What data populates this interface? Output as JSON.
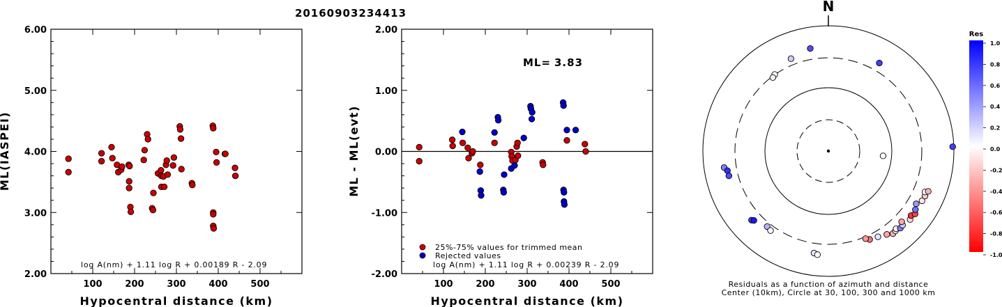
{
  "title": "20160903234413",
  "colors": {
    "accepted": "#cc0000",
    "rejected": "#0000cc",
    "axis": "#000000"
  },
  "chart_data": [
    {
      "type": "scatter",
      "title": "",
      "xlabel": "Hypocentral distance (km)",
      "ylabel": "ML(IASPEI)",
      "xlim": [
        0,
        600
      ],
      "ylim": [
        2.0,
        6.0
      ],
      "xticks": [
        "100",
        "200",
        "300",
        "400",
        "500"
      ],
      "yticks": [
        "2.00",
        "3.00",
        "4.00",
        "5.00",
        "6.00"
      ],
      "formula": "log A(nm) + 1.11 log R + 0.00189 R - 2.09",
      "series": [
        {
          "color": "red",
          "points": [
            [
              42,
              3.88
            ],
            [
              42,
              3.66
            ],
            [
              121,
              3.97
            ],
            [
              121,
              3.84
            ],
            [
              145,
              4.07
            ],
            [
              147,
              3.89
            ],
            [
              158,
              3.78
            ],
            [
              161,
              3.66
            ],
            [
              168,
              3.7
            ],
            [
              170,
              3.75
            ],
            [
              186,
              3.78
            ],
            [
              188,
              3.76
            ],
            [
              187,
              3.51
            ],
            [
              187,
              3.4
            ],
            [
              190,
              3.09
            ],
            [
              191,
              3.01
            ],
            [
              222,
              3.86
            ],
            [
              224,
              4.02
            ],
            [
              230,
              4.28
            ],
            [
              232,
              4.2
            ],
            [
              242,
              3.07
            ],
            [
              244,
              3.04
            ],
            [
              245,
              3.32
            ],
            [
              256,
              3.64
            ],
            [
              263,
              3.69
            ],
            [
              264,
              3.6
            ],
            [
              264,
              3.42
            ],
            [
              269,
              3.59
            ],
            [
              271,
              3.42
            ],
            [
              275,
              3.78
            ],
            [
              277,
              3.85
            ],
            [
              279,
              3.62
            ],
            [
              292,
              3.77
            ],
            [
              294,
              3.9
            ],
            [
              308,
              4.41
            ],
            [
              309,
              4.36
            ],
            [
              311,
              4.21
            ],
            [
              312,
              3.71
            ],
            [
              337,
              3.48
            ],
            [
              338,
              3.45
            ],
            [
              387,
              4.42
            ],
            [
              388,
              4.38
            ],
            [
              388,
              3.0
            ],
            [
              388,
              2.97
            ],
            [
              388,
              2.78
            ],
            [
              389,
              2.74
            ],
            [
              395,
              3.99
            ],
            [
              396,
              3.82
            ],
            [
              416,
              3.96
            ],
            [
              417,
              3.96
            ],
            [
              440,
              3.73
            ],
            [
              441,
              3.6
            ]
          ]
        }
      ]
    },
    {
      "type": "scatter",
      "title": "",
      "xlabel": "Hypocentral distance (km)",
      "ylabel": "ML - ML(evt)",
      "xlim": [
        0,
        600
      ],
      "ylim": [
        -2.0,
        2.0
      ],
      "xticks": [
        "100",
        "200",
        "300",
        "400",
        "500"
      ],
      "yticks": [
        "-2.00",
        "-1.00",
        "0.00",
        "1.00",
        "2.00"
      ],
      "reference_line": 0.0,
      "annotation": {
        "label": "ML=",
        "value": "3.83"
      },
      "formula": "log A(nm) + 1.11 log R + 0.00239 R - 2.09",
      "legend": [
        "25%-75% values for trimmed mean",
        "Rejected values"
      ],
      "series": [
        {
          "name": "25%-75% values for trimmed mean",
          "color": "red",
          "points": [
            [
              42,
              0.07
            ],
            [
              42,
              -0.16
            ],
            [
              121,
              0.19
            ],
            [
              122,
              0.09
            ],
            [
              146,
              0.14
            ],
            [
              158,
              0.06
            ],
            [
              160,
              -0.11
            ],
            [
              168,
              -0.03
            ],
            [
              170,
              0.0
            ],
            [
              188,
              -0.22
            ],
            [
              222,
              0.14
            ],
            [
              262,
              -0.01
            ],
            [
              263,
              -0.08
            ],
            [
              265,
              -0.15
            ],
            [
              272,
              -0.14
            ],
            [
              275,
              0.08
            ],
            [
              277,
              0.14
            ],
            [
              278,
              -0.07
            ],
            [
              337,
              -0.18
            ],
            [
              338,
              -0.22
            ],
            [
              395,
              0.18
            ],
            [
              438,
              0.12
            ],
            [
              440,
              0.0
            ]
          ]
        },
        {
          "name": "Rejected values",
          "color": "blue",
          "points": [
            [
              145,
              0.32
            ],
            [
              187,
              -0.33
            ],
            [
              189,
              -0.64
            ],
            [
              190,
              -0.72
            ],
            [
              222,
              0.31
            ],
            [
              230,
              0.56
            ],
            [
              231,
              0.51
            ],
            [
              243,
              -0.63
            ],
            [
              244,
              -0.67
            ],
            [
              245,
              -0.38
            ],
            [
              262,
              -0.28
            ],
            [
              270,
              -0.23
            ],
            [
              292,
              0.22
            ],
            [
              308,
              0.74
            ],
            [
              309,
              0.7
            ],
            [
              311,
              0.53
            ],
            [
              312,
              0.64
            ],
            [
              386,
              0.8
            ],
            [
              387,
              0.75
            ],
            [
              387,
              -0.63
            ],
            [
              388,
              -0.67
            ],
            [
              388,
              -0.82
            ],
            [
              389,
              -0.87
            ],
            [
              395,
              0.35
            ],
            [
              416,
              0.35
            ]
          ]
        }
      ]
    },
    {
      "type": "polar_scatter",
      "north_label": "N",
      "caption_line1": "Residuals as a function of azimuth and distance",
      "caption_line2": "Center (10km), Circle at 30, 100, 300 and 1000 km",
      "colorbar": {
        "title": "Res",
        "range": [
          -1.0,
          1.0
        ],
        "ticks": [
          "1.0",
          "0.8",
          "0.6",
          "0.4",
          "0.2",
          "0.0",
          "-0.2",
          "-0.4",
          "-0.6",
          "-0.8",
          "-1.0"
        ]
      },
      "stations": [
        {
          "az": 350,
          "dist": 460,
          "res": 0.7
        },
        {
          "az": 338,
          "dist": 390,
          "res": 0.2
        },
        {
          "az": 325,
          "dist": 310,
          "res": 0.0
        },
        {
          "az": 323,
          "dist": 295,
          "res": 0.05
        },
        {
          "az": 30,
          "dist": 420,
          "res": 0.75
        },
        {
          "az": 261,
          "dist": 480,
          "res": 0.5
        },
        {
          "az": 259,
          "dist": 435,
          "res": 0.8
        },
        {
          "az": 256,
          "dist": 430,
          "res": 0.7
        },
        {
          "az": 88,
          "dist": 960,
          "res": 0.75
        },
        {
          "az": 228,
          "dist": 445,
          "res": 0.75
        },
        {
          "az": 227,
          "dist": 420,
          "res": 0.9
        },
        {
          "az": 219,
          "dist": 355,
          "res": 0.3
        },
        {
          "az": 216,
          "dist": 370,
          "res": 0.0
        },
        {
          "az": 188,
          "dist": 440,
          "res": 0.1
        },
        {
          "az": 186,
          "dist": 460,
          "res": 0.0
        },
        {
          "az": 95,
          "dist": 75,
          "res": 0.0
        },
        {
          "az": 142,
          "dist": 470,
          "res": -0.3
        },
        {
          "az": 140,
          "dist": 460,
          "res": -0.1
        },
        {
          "az": 139,
          "dist": 440,
          "res": -0.05
        },
        {
          "az": 137,
          "dist": 480,
          "res": 0.5
        },
        {
          "az": 135,
          "dist": 470,
          "res": 0.2
        },
        {
          "az": 134,
          "dist": 420,
          "res": -0.35
        },
        {
          "az": 130,
          "dist": 500,
          "res": -0.15
        },
        {
          "az": 128,
          "dist": 470,
          "res": -0.8
        },
        {
          "az": 126,
          "dist": 510,
          "res": -0.75
        },
        {
          "az": 124,
          "dist": 470,
          "res": 0.55
        },
        {
          "az": 121,
          "dist": 430,
          "res": 0.4
        },
        {
          "az": 118,
          "dist": 490,
          "res": -0.1
        },
        {
          "az": 115,
          "dist": 500,
          "res": -0.2
        },
        {
          "az": 113,
          "dist": 470,
          "res": 0.0
        },
        {
          "az": 112,
          "dist": 520,
          "res": -0.3
        },
        {
          "az": 145,
          "dist": 420,
          "res": -0.35
        },
        {
          "az": 150,
          "dist": 380,
          "res": 0.1
        },
        {
          "az": 155,
          "dist": 360,
          "res": -0.55
        },
        {
          "az": 157,
          "dist": 330,
          "res": -0.4
        }
      ]
    }
  ]
}
